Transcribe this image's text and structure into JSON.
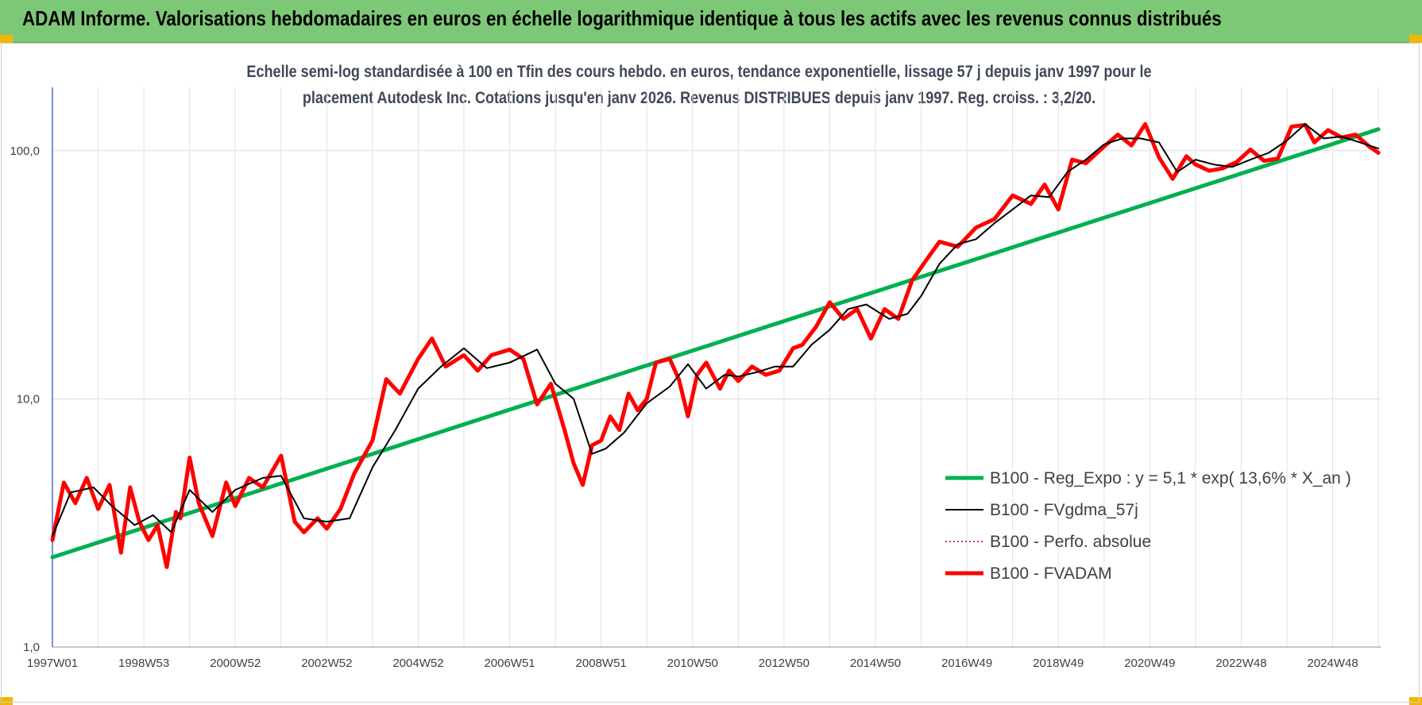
{
  "banner": {
    "title": "ADAM Informe. Valorisations hebdomadaires en euros en échelle logarithmique identique à tous les actifs avec les revenus connus distribués"
  },
  "chart_data": {
    "type": "line",
    "title": "Echelle semi-log standardisée à 100 en Tfin des cours hebdo. en euros, tendance exponentielle, lissage 57 j depuis janv 1997 pour le placement Autodesk Inc. Cotations jusqu'en janv 2026. Revenus DISTRIBUES depuis janv 1997. Reg. croiss. : 3,2/20.",
    "title_lines": [
      "Echelle semi-log standardisée à 100 en Tfin des cours hebdo. en euros, tendance exponentielle, lissage 57 j depuis janv 1997 pour le",
      "placement Autodesk Inc. Cotations jusqu'en janv 2026. Revenus DISTRIBUES depuis janv 1997. Reg. croiss. : 3,2/20."
    ],
    "x_scale": "time (weekly)",
    "y_scale": "log",
    "xlim": [
      1997.0,
      2026.05
    ],
    "ylim": [
      1,
      180
    ],
    "y_ticks": [
      1,
      10,
      100
    ],
    "y_tick_labels": [
      "1,0",
      "10,0",
      "100,0"
    ],
    "x_ticks": [
      1997.0,
      1999.0,
      2001.0,
      2003.0,
      2005.0,
      2007.0,
      2009.0,
      2011.0,
      2013.0,
      2015.0,
      2017.0,
      2019.0,
      2021.0,
      2023.0,
      2025.0
    ],
    "x_tick_labels": [
      "1997W01",
      "1998W53",
      "2000W52",
      "2002W52",
      "2004W52",
      "2006W51",
      "2008W51",
      "2010W50",
      "2012W50",
      "2014W50",
      "2016W49",
      "2018W49",
      "2020W49",
      "2022W48",
      "2024W48"
    ],
    "grid": true,
    "legend_position": "bottom-right",
    "series": [
      {
        "name": "B100 - Reg_Expo : y = 5,1 * exp( 13,6% * X_an )",
        "color": "#00b050",
        "style": "solid-thick",
        "x": [
          1997.0,
          2026.0
        ],
        "y": [
          2.3,
          122
        ]
      },
      {
        "name": "B100 - FVgdma_57j",
        "color": "#000000",
        "style": "solid-thin",
        "x": [
          1997.0,
          1997.4,
          1997.9,
          1998.3,
          1998.8,
          1999.2,
          1999.6,
          2000.0,
          2000.5,
          2001.0,
          2001.6,
          2002.0,
          2002.5,
          2003.0,
          2003.5,
          2004.0,
          2004.5,
          2005.0,
          2005.5,
          2006.0,
          2006.5,
          2007.0,
          2007.6,
          2008.0,
          2008.4,
          2008.8,
          2009.1,
          2009.5,
          2010.0,
          2010.5,
          2010.9,
          2011.3,
          2011.7,
          2012.0,
          2012.4,
          2012.8,
          2013.2,
          2013.6,
          2014.0,
          2014.4,
          2014.8,
          2015.3,
          2015.7,
          2016.0,
          2016.4,
          2016.8,
          2017.2,
          2017.6,
          2018.0,
          2018.4,
          2018.8,
          2019.2,
          2019.6,
          2020.0,
          2020.4,
          2020.8,
          2021.2,
          2021.6,
          2022.0,
          2022.4,
          2022.8,
          2023.2,
          2023.6,
          2024.0,
          2024.4,
          2024.8,
          2025.2,
          2025.6,
          2026.0
        ],
        "y": [
          2.8,
          4.2,
          4.4,
          3.7,
          3.1,
          3.4,
          2.9,
          4.3,
          3.5,
          4.3,
          4.8,
          4.9,
          3.3,
          3.2,
          3.3,
          5.3,
          7.5,
          11.0,
          13.5,
          16.0,
          13.3,
          14.0,
          15.8,
          11.5,
          10.0,
          6.0,
          6.3,
          7.3,
          9.6,
          11.2,
          13.8,
          11.0,
          12.5,
          12.3,
          12.8,
          13.5,
          13.5,
          16.5,
          19.0,
          23.0,
          24.0,
          21.0,
          22.0,
          26.0,
          35.0,
          42.0,
          44.0,
          51.0,
          58.0,
          66.0,
          65.0,
          82.0,
          92.0,
          106,
          112,
          112,
          108,
          82.0,
          92.0,
          88.0,
          86.0,
          92.0,
          98.0,
          110,
          128,
          112,
          114,
          108,
          102
        ]
      },
      {
        "name": "B100 - Perfo. absolue",
        "color": "#c00000",
        "style": "dotted",
        "x": [],
        "y": []
      },
      {
        "name": "B100 - FVADAM",
        "color": "#ff0000",
        "style": "solid-thick",
        "x": [
          1997.0,
          1997.25,
          1997.5,
          1997.75,
          1998.0,
          1998.25,
          1998.5,
          1998.7,
          1998.9,
          1999.1,
          1999.3,
          1999.5,
          1999.7,
          1999.8,
          2000.0,
          2000.2,
          2000.5,
          2000.8,
          2001.0,
          2001.3,
          2001.6,
          2002.0,
          2002.3,
          2002.5,
          2002.8,
          2003.0,
          2003.3,
          2003.6,
          2004.0,
          2004.3,
          2004.6,
          2005.0,
          2005.3,
          2005.6,
          2006.0,
          2006.3,
          2006.6,
          2007.0,
          2007.3,
          2007.6,
          2007.9,
          2008.2,
          2008.4,
          2008.6,
          2008.8,
          2009.0,
          2009.2,
          2009.4,
          2009.6,
          2009.8,
          2010.0,
          2010.2,
          2010.5,
          2010.7,
          2010.9,
          2011.1,
          2011.3,
          2011.6,
          2011.8,
          2012.0,
          2012.3,
          2012.6,
          2012.9,
          2013.2,
          2013.4,
          2013.7,
          2014.0,
          2014.3,
          2014.6,
          2014.9,
          2015.2,
          2015.5,
          2015.8,
          2016.1,
          2016.4,
          2016.8,
          2017.2,
          2017.6,
          2018.0,
          2018.4,
          2018.7,
          2019.0,
          2019.3,
          2019.6,
          2020.0,
          2020.3,
          2020.6,
          2020.9,
          2021.2,
          2021.5,
          2021.8,
          2022.0,
          2022.3,
          2022.6,
          2022.9,
          2023.2,
          2023.5,
          2023.8,
          2024.1,
          2024.4,
          2024.6,
          2024.9,
          2025.2,
          2025.5,
          2025.8,
          2026.0
        ],
        "y": [
          2.7,
          4.6,
          3.8,
          4.8,
          3.6,
          4.5,
          2.4,
          4.4,
          3.2,
          2.7,
          3.1,
          2.1,
          3.5,
          3.3,
          5.8,
          3.8,
          2.8,
          4.6,
          3.7,
          4.8,
          4.4,
          5.9,
          3.2,
          2.9,
          3.3,
          3.0,
          3.6,
          5.0,
          6.8,
          12.0,
          10.5,
          14.5,
          17.5,
          13.5,
          15.0,
          13.0,
          15.0,
          15.8,
          14.5,
          9.5,
          11.5,
          7.5,
          5.5,
          4.5,
          6.5,
          6.8,
          8.5,
          7.5,
          10.5,
          9.0,
          10.0,
          14.0,
          14.5,
          12.0,
          8.5,
          12.5,
          14.0,
          11.0,
          13.0,
          11.8,
          13.5,
          12.5,
          13.0,
          16.0,
          16.5,
          19.5,
          24.5,
          21.0,
          23.0,
          17.5,
          23.0,
          21.0,
          30.0,
          36.0,
          43.0,
          41.0,
          49.0,
          53.0,
          66.0,
          61.0,
          73.0,
          58.0,
          92.0,
          89.0,
          104,
          116,
          105,
          128,
          94.0,
          77.0,
          95.0,
          88.0,
          83.0,
          85.0,
          90.0,
          101,
          91.0,
          93.0,
          125,
          127,
          108,
          121,
          113,
          116,
          104,
          98.0
        ]
      }
    ]
  }
}
